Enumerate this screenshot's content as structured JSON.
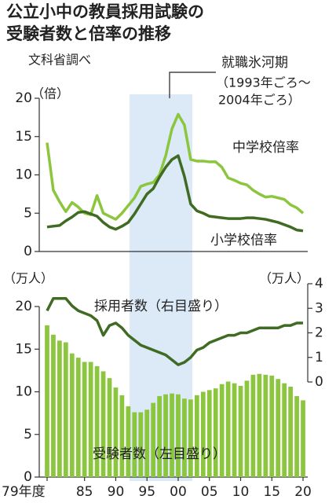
{
  "chart_data": [
    {
      "type": "line",
      "title": "公立小中の教員採用試験の",
      "subtitle": "受験者数と倍率の推移",
      "source": "文科省調べ",
      "annotations": [
        "就職氷河期",
        "（1993年ごろ～",
        "2004年ごろ）"
      ],
      "ylabel": "（倍）",
      "categories": [
        null,
        null,
        null,
        null,
        null,
        null,
        null,
        null,
        null,
        null,
        null,
        null,
        null,
        null,
        null,
        null,
        null,
        null,
        null,
        null,
        null,
        null,
        null,
        null,
        null,
        null,
        null,
        null,
        null,
        null,
        null,
        null,
        null,
        null,
        null,
        null,
        null,
        null,
        null,
        null,
        null,
        null
      ],
      "ylim": [
        0,
        20
      ],
      "yticks": [
        0,
        5,
        10,
        15,
        20
      ],
      "series": [
        {
          "name": "中学校倍率",
          "color": "#8cc63e",
          "values": [
            14.2,
            8,
            6.5,
            5.2,
            6.4,
            5.8,
            5.0,
            4.8,
            7.3,
            5.0,
            4.6,
            4.2,
            5.0,
            6.0,
            7.0,
            8.5,
            8.8,
            9.0,
            10.0,
            12.5,
            16,
            17.9,
            16.5,
            12.0,
            11.8,
            11.8,
            11.7,
            11.7,
            11.0,
            9.6,
            9.3,
            8.9,
            8.7,
            8.0,
            7.5,
            7.1,
            7.2,
            7.0,
            6.8,
            6.1,
            5.7,
            5.0
          ]
        },
        {
          "name": "小学校倍率",
          "color": "#3f6b22",
          "values": [
            3.2,
            3.3,
            3.4,
            4.0,
            4.5,
            5.1,
            5.2,
            4.9,
            4.6,
            3.8,
            3.2,
            2.9,
            3.3,
            3.8,
            4.9,
            6.2,
            7.5,
            8.2,
            9.7,
            11.0,
            12.0,
            12.5,
            9.8,
            6.2,
            5.3,
            5.0,
            4.6,
            4.5,
            4.4,
            4.3,
            4.3,
            4.3,
            4.4,
            4.4,
            4.3,
            4.2,
            4.0,
            3.8,
            3.5,
            3.2,
            2.8,
            2.7
          ]
        }
      ]
    },
    {
      "type": "bar",
      "ylabel": "（万人）",
      "y2label": "（万人）",
      "categories": [
        "79年度",
        null,
        null,
        null,
        null,
        null,
        "85",
        null,
        null,
        null,
        null,
        "90",
        null,
        null,
        null,
        null,
        "95",
        null,
        null,
        null,
        null,
        "00",
        null,
        null,
        null,
        null,
        "05",
        null,
        null,
        null,
        null,
        "10",
        null,
        null,
        null,
        null,
        "15",
        null,
        null,
        null,
        null,
        "20"
      ],
      "ylim": [
        0,
        20
      ],
      "yticks": [
        0,
        5,
        10,
        15,
        20
      ],
      "y2lim": [
        0,
        4
      ],
      "y2ticks": [
        0,
        1,
        2,
        3,
        4
      ],
      "series": [
        {
          "name": "受験者数（左目盛り）",
          "color": "#8cc63e",
          "values": [
            17.8,
            16.7,
            16.0,
            15.8,
            14.5,
            14.0,
            13.5,
            13.5,
            13.0,
            12.4,
            11.6,
            10.5,
            9.6,
            8.3,
            7.6,
            7.6,
            7.9,
            8.7,
            9.5,
            9.7,
            9.8,
            9.7,
            9.2,
            9.1,
            9.6,
            10.0,
            10.2,
            10.4,
            10.9,
            11.2,
            11.0,
            10.7,
            11.3,
            12.0,
            12.1,
            12.0,
            11.9,
            11.5,
            11.0,
            10.6,
            9.5,
            9.0
          ]
        },
        {
          "name": "採用者数（右目盛り）",
          "color": "#3f6b22",
          "axis": "y2",
          "values": [
            2.9,
            3.4,
            3.4,
            3.4,
            3.1,
            2.9,
            2.8,
            2.7,
            2.5,
            1.9,
            2.3,
            2.4,
            2.2,
            1.9,
            1.7,
            1.5,
            1.4,
            1.3,
            1.2,
            1.1,
            0.9,
            0.7,
            0.8,
            1.0,
            1.3,
            1.4,
            1.6,
            1.7,
            1.8,
            1.9,
            1.9,
            2.0,
            2.0,
            2.1,
            2.2,
            2.2,
            2.2,
            2.2,
            2.3,
            2.3,
            2.4,
            2.4
          ]
        }
      ]
    }
  ]
}
